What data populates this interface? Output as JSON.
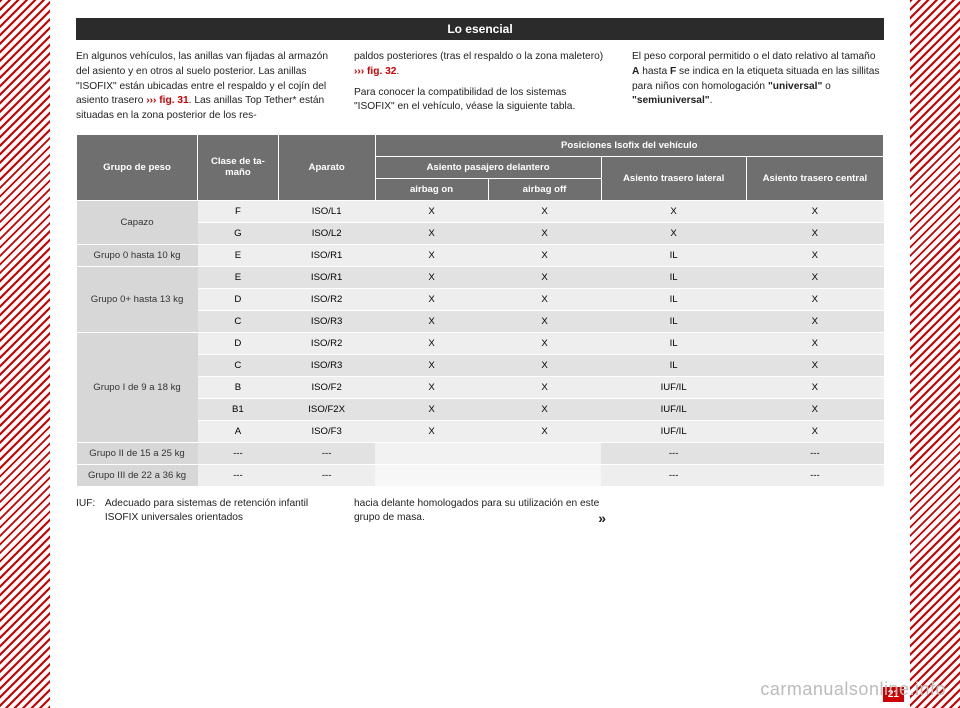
{
  "page": {
    "title": "Lo esencial",
    "number": "21",
    "watermark": "carmanualsonline.info"
  },
  "intro": {
    "col1": "En algunos vehículos, las anillas van fijadas al armazón del asiento y en otros al suelo posterior. Las anillas \"ISOFIX\" están ubicadas entre el respaldo y el cojín del asiento trasero ",
    "col1_ref": "››› fig. 31",
    "col1_tail": ". Las anillas Top Tether* están situadas en la zona posterior de los res-",
    "col2a": "paldos posteriores (tras el respaldo o la zona maletero) ",
    "col2_ref": "››› fig. 32",
    "col2a_tail": ".",
    "col2b": "Para conocer la compatibilidad de los sistemas \"ISOFIX\" en el vehículo, véase la siguiente tabla.",
    "col3a": "El peso corporal permitido o el dato relativo al tamaño ",
    "col3_bold1": "A",
    "col3_mid": " hasta ",
    "col3_bold2": "F",
    "col3b": " se indica en la etiqueta situada en las sillitas para niños con homologación ",
    "col3_bold3": "\"universal\"",
    "col3c": " o ",
    "col3_bold4": "\"semiuniversal\"",
    "col3d": "."
  },
  "table": {
    "headers": {
      "grupo": "Grupo de peso",
      "clase": "Clase de ta-\nmaño",
      "aparato": "Aparato",
      "posiciones": "Posiciones Isofix del vehículo",
      "pasajero": "Asiento pasajero delantero",
      "airbag_on": "airbag on",
      "airbag_off": "airbag off",
      "lateral": "Asiento trasero lateral",
      "central": "Asiento trasero central"
    },
    "rows": [
      {
        "grupo": "Capazo",
        "rowspan": 2,
        "clase": "F",
        "aparato": "ISO/L1",
        "on": "X",
        "off": "X",
        "lat": "X",
        "cen": "X"
      },
      {
        "clase": "G",
        "aparato": "ISO/L2",
        "on": "X",
        "off": "X",
        "lat": "X",
        "cen": "X"
      },
      {
        "grupo": "Grupo 0 hasta 10 kg",
        "rowspan": 1,
        "clase": "E",
        "aparato": "ISO/R1",
        "on": "X",
        "off": "X",
        "lat": "IL",
        "cen": "X"
      },
      {
        "grupo": "Grupo 0+ hasta 13 kg",
        "rowspan": 3,
        "clase": "E",
        "aparato": "ISO/R1",
        "on": "X",
        "off": "X",
        "lat": "IL",
        "cen": "X"
      },
      {
        "clase": "D",
        "aparato": "ISO/R2",
        "on": "X",
        "off": "X",
        "lat": "IL",
        "cen": "X"
      },
      {
        "clase": "C",
        "aparato": "ISO/R3",
        "on": "X",
        "off": "X",
        "lat": "IL",
        "cen": "X"
      },
      {
        "grupo": "Grupo I de 9 a 18 kg",
        "rowspan": 5,
        "clase": "D",
        "aparato": "ISO/R2",
        "on": "X",
        "off": "X",
        "lat": "IL",
        "cen": "X"
      },
      {
        "clase": "C",
        "aparato": "ISO/R3",
        "on": "X",
        "off": "X",
        "lat": "IL",
        "cen": "X"
      },
      {
        "clase": "B",
        "aparato": "ISO/F2",
        "on": "X",
        "off": "X",
        "lat": "IUF/IL",
        "cen": "X"
      },
      {
        "clase": "B1",
        "aparato": "ISO/F2X",
        "on": "X",
        "off": "X",
        "lat": "IUF/IL",
        "cen": "X"
      },
      {
        "clase": "A",
        "aparato": "ISO/F3",
        "on": "X",
        "off": "X",
        "lat": "IUF/IL",
        "cen": "X"
      },
      {
        "grupo": "Grupo II de 15 a 25 kg",
        "rowspan": 1,
        "clase": "---",
        "aparato": "---",
        "on": "",
        "off": "",
        "lat": "---",
        "cen": "---",
        "blank": true
      },
      {
        "grupo": "Grupo III de 22 a 36 kg",
        "rowspan": 1,
        "clase": "---",
        "aparato": "---",
        "on": "",
        "off": "",
        "lat": "---",
        "cen": "---",
        "blank": true
      }
    ]
  },
  "footer": {
    "iuf_label": "IUF:",
    "iuf_text": "Adecuado para sistemas de retención infantil ISOFIX universales orientados",
    "col2": "hacia delante homologados para su utilización en este grupo de masa.",
    "cont": "»"
  }
}
